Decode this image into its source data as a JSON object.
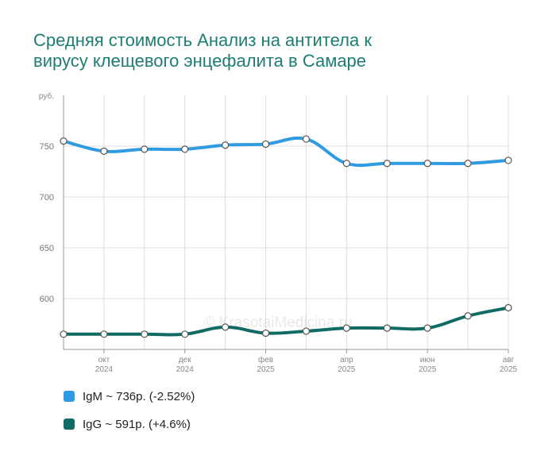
{
  "title_lines": [
    "Средняя стоимость Анализ на антитела к",
    "вирусу клещевого энцефалита в Самаре"
  ],
  "watermark": "© KrasotaiMedicina.ru",
  "colors": {
    "title": "#1e7d72",
    "igm": "#2f9be0",
    "igg": "#0f6b63",
    "grid": "#dddddd"
  },
  "chart_data": {
    "type": "line",
    "title": "Средняя стоимость Анализ на антитела к вирусу клещевого энцефалита в Самаре",
    "ylabel": "руб.",
    "ylim": [
      550,
      800
    ],
    "yticks": [
      600,
      650,
      700,
      750
    ],
    "x": [
      "2024-09",
      "2024-10",
      "2024-11",
      "2024-12",
      "2025-01",
      "2025-02",
      "2025-03",
      "2025-04",
      "2025-05",
      "2025-06",
      "2025-07",
      "2025-08"
    ],
    "tick_labels": [
      {
        "month": "окт",
        "year": "2024"
      },
      {
        "month": "дек",
        "year": "2024"
      },
      {
        "month": "фев",
        "year": "2025"
      },
      {
        "month": "апр",
        "year": "2025"
      },
      {
        "month": "июн",
        "year": "2025"
      },
      {
        "month": "авг",
        "year": "2025"
      }
    ],
    "series": [
      {
        "name": "IgM",
        "values": [
          755,
          745,
          747,
          747,
          751,
          752,
          757,
          733,
          733,
          733,
          733,
          736
        ]
      },
      {
        "name": "IgG",
        "values": [
          565,
          565,
          565,
          565,
          572,
          566,
          568,
          571,
          571,
          571,
          583,
          591
        ]
      }
    ],
    "legend": [
      {
        "label": "IgM ~ 736р. (-2.52%)"
      },
      {
        "label": "IgG ~ 591р. (+4.6%)"
      }
    ],
    "legend_position": "bottom-left",
    "grid": true
  }
}
